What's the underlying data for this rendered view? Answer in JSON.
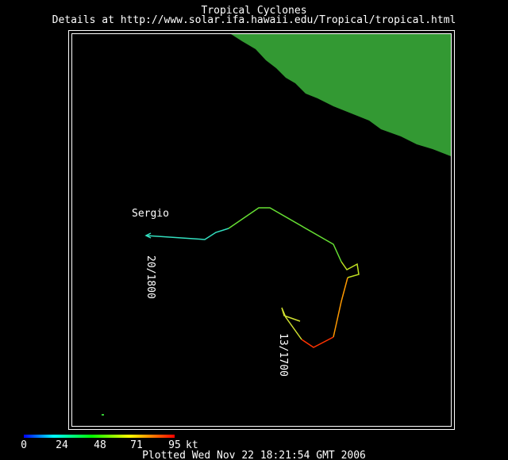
{
  "header": {
    "title": "Tropical Cyclones",
    "subtitle": "Details at http://www.solar.ifa.hawaii.edu/Tropical/tropical.html"
  },
  "storm": {
    "name": "Sergio",
    "start_label": "13/1700",
    "end_label": "20/1800"
  },
  "scale": {
    "ticks": [
      0,
      24,
      48,
      71,
      95
    ],
    "unit": "kt"
  },
  "footer": "Plotted Wed Nov 22 18:21:54 GMT 2006"
}
